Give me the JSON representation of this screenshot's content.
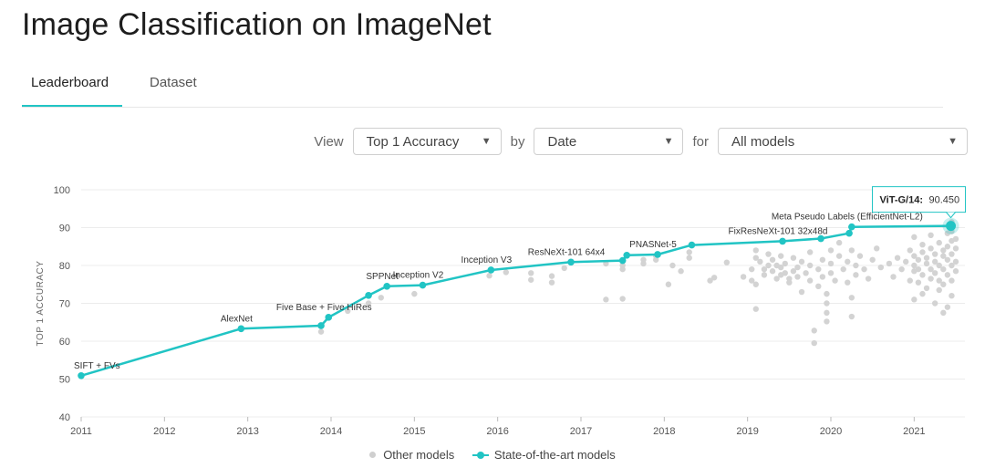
{
  "page": {
    "title": "Image Classification on ImageNet"
  },
  "tabs": [
    {
      "label": "Leaderboard",
      "active": true
    },
    {
      "label": "Dataset",
      "active": false
    }
  ],
  "filters": {
    "view_label": "View",
    "metric": "Top 1 Accuracy",
    "by_label": "by",
    "sort": "Date",
    "for_label": "for",
    "models": "All models"
  },
  "chart_data": {
    "type": "scatter",
    "ylabel": "TOP 1 ACCURACY",
    "xlabel": "",
    "ylim": [
      40,
      100
    ],
    "xlim": [
      2011,
      2021.5
    ],
    "y_ticks": [
      40,
      50,
      60,
      70,
      80,
      90,
      100
    ],
    "x_ticks": [
      "2011",
      "2012",
      "2013",
      "2014",
      "2015",
      "2016",
      "2017",
      "2018",
      "2019",
      "2020",
      "2021"
    ],
    "grid": true,
    "legend": {
      "position": "bottom",
      "entries": [
        "Other models",
        "State-of-the-art models"
      ]
    },
    "colors": {
      "sota": "#21c4c4",
      "other": "#d3d3d3",
      "grid": "#ececec"
    },
    "series": [
      {
        "name": "State-of-the-art models",
        "points": [
          {
            "x": 2011.0,
            "y": 50.9,
            "label": "SIFT + FVs"
          },
          {
            "x": 2012.92,
            "y": 63.3,
            "label": "AlexNet"
          },
          {
            "x": 2013.88,
            "y": 64.1,
            "label": ""
          },
          {
            "x": 2013.97,
            "y": 66.3,
            "label": "Five Base + Five HiRes"
          },
          {
            "x": 2014.45,
            "y": 72.1,
            "label": ""
          },
          {
            "x": 2014.67,
            "y": 74.5,
            "label": "SPPNet"
          },
          {
            "x": 2015.1,
            "y": 74.8,
            "label": "Inception V2"
          },
          {
            "x": 2015.92,
            "y": 78.8,
            "label": "Inception V3"
          },
          {
            "x": 2016.88,
            "y": 80.9,
            "label": "ResNeXt-101 64x4"
          },
          {
            "x": 2017.5,
            "y": 81.3,
            "label": ""
          },
          {
            "x": 2017.55,
            "y": 82.7,
            "label": ""
          },
          {
            "x": 2017.92,
            "y": 82.9,
            "label": "PNASNet-5"
          },
          {
            "x": 2018.33,
            "y": 85.4,
            "label": ""
          },
          {
            "x": 2019.42,
            "y": 86.4,
            "label": "FixResNeXt-101 32x48d"
          },
          {
            "x": 2019.88,
            "y": 87.1,
            "label": ""
          },
          {
            "x": 2020.22,
            "y": 88.5,
            "label": ""
          },
          {
            "x": 2020.25,
            "y": 90.2,
            "label": "Meta Pseudo Labels (EfficientNet-L2)"
          },
          {
            "x": 2021.44,
            "y": 90.45,
            "label": ""
          }
        ]
      },
      {
        "name": "Other models",
        "points": [
          {
            "x": 2013.88,
            "y": 62.5
          },
          {
            "x": 2014.2,
            "y": 68
          },
          {
            "x": 2014.45,
            "y": 70
          },
          {
            "x": 2014.6,
            "y": 71.5
          },
          {
            "x": 2015.0,
            "y": 72.5
          },
          {
            "x": 2015.9,
            "y": 77.3
          },
          {
            "x": 2016.1,
            "y": 78.2
          },
          {
            "x": 2016.4,
            "y": 76.2
          },
          {
            "x": 2016.4,
            "y": 78
          },
          {
            "x": 2016.65,
            "y": 75.5
          },
          {
            "x": 2016.65,
            "y": 77.2
          },
          {
            "x": 2016.8,
            "y": 79.3
          },
          {
            "x": 2017.3,
            "y": 71
          },
          {
            "x": 2017.3,
            "y": 80.5
          },
          {
            "x": 2017.5,
            "y": 71.2
          },
          {
            "x": 2017.5,
            "y": 79
          },
          {
            "x": 2017.5,
            "y": 80
          },
          {
            "x": 2017.75,
            "y": 80.5
          },
          {
            "x": 2017.75,
            "y": 81.5
          },
          {
            "x": 2017.9,
            "y": 81.5
          },
          {
            "x": 2017.9,
            "y": 82.5
          },
          {
            "x": 2018.05,
            "y": 75
          },
          {
            "x": 2018.1,
            "y": 80
          },
          {
            "x": 2018.2,
            "y": 78.5
          },
          {
            "x": 2018.3,
            "y": 82
          },
          {
            "x": 2018.3,
            "y": 83.5
          },
          {
            "x": 2018.55,
            "y": 76
          },
          {
            "x": 2018.6,
            "y": 76.8
          },
          {
            "x": 2018.75,
            "y": 80.8
          },
          {
            "x": 2018.95,
            "y": 77
          },
          {
            "x": 2019.05,
            "y": 76
          },
          {
            "x": 2019.1,
            "y": 75
          },
          {
            "x": 2019.1,
            "y": 68.5
          },
          {
            "x": 2019.05,
            "y": 79
          },
          {
            "x": 2019.1,
            "y": 82
          },
          {
            "x": 2019.1,
            "y": 84
          },
          {
            "x": 2019.15,
            "y": 81
          },
          {
            "x": 2019.2,
            "y": 79
          },
          {
            "x": 2019.2,
            "y": 77.5
          },
          {
            "x": 2019.25,
            "y": 80
          },
          {
            "x": 2019.25,
            "y": 83
          },
          {
            "x": 2019.3,
            "y": 78.5
          },
          {
            "x": 2019.3,
            "y": 81.5
          },
          {
            "x": 2019.35,
            "y": 76.5
          },
          {
            "x": 2019.35,
            "y": 80
          },
          {
            "x": 2019.4,
            "y": 77.5
          },
          {
            "x": 2019.4,
            "y": 79.5
          },
          {
            "x": 2019.4,
            "y": 82.5
          },
          {
            "x": 2019.45,
            "y": 78
          },
          {
            "x": 2019.45,
            "y": 80.5
          },
          {
            "x": 2019.5,
            "y": 76.5
          },
          {
            "x": 2019.5,
            "y": 75.5
          },
          {
            "x": 2019.55,
            "y": 78.5
          },
          {
            "x": 2019.55,
            "y": 82
          },
          {
            "x": 2019.6,
            "y": 77
          },
          {
            "x": 2019.6,
            "y": 79.5
          },
          {
            "x": 2019.65,
            "y": 81
          },
          {
            "x": 2019.65,
            "y": 73
          },
          {
            "x": 2019.7,
            "y": 78
          },
          {
            "x": 2019.75,
            "y": 76
          },
          {
            "x": 2019.75,
            "y": 80
          },
          {
            "x": 2019.75,
            "y": 83.5
          },
          {
            "x": 2019.8,
            "y": 62.8
          },
          {
            "x": 2019.8,
            "y": 59.5
          },
          {
            "x": 2019.85,
            "y": 79
          },
          {
            "x": 2019.85,
            "y": 74.5
          },
          {
            "x": 2019.9,
            "y": 81.5
          },
          {
            "x": 2019.9,
            "y": 77
          },
          {
            "x": 2019.95,
            "y": 70
          },
          {
            "x": 2019.95,
            "y": 67.5
          },
          {
            "x": 2019.95,
            "y": 65.2
          },
          {
            "x": 2019.95,
            "y": 72.5
          },
          {
            "x": 2020.0,
            "y": 78
          },
          {
            "x": 2020.0,
            "y": 84
          },
          {
            "x": 2020.0,
            "y": 80.5
          },
          {
            "x": 2020.05,
            "y": 76
          },
          {
            "x": 2020.1,
            "y": 86
          },
          {
            "x": 2020.1,
            "y": 82.5
          },
          {
            "x": 2020.15,
            "y": 79
          },
          {
            "x": 2020.2,
            "y": 75.5
          },
          {
            "x": 2020.2,
            "y": 81
          },
          {
            "x": 2020.25,
            "y": 66.5
          },
          {
            "x": 2020.25,
            "y": 71.5
          },
          {
            "x": 2020.25,
            "y": 84
          },
          {
            "x": 2020.3,
            "y": 77.5
          },
          {
            "x": 2020.3,
            "y": 80
          },
          {
            "x": 2020.35,
            "y": 82.5
          },
          {
            "x": 2020.4,
            "y": 79
          },
          {
            "x": 2020.45,
            "y": 76.5
          },
          {
            "x": 2020.5,
            "y": 81.5
          },
          {
            "x": 2020.55,
            "y": 84.5
          },
          {
            "x": 2020.6,
            "y": 79.5
          },
          {
            "x": 2020.7,
            "y": 80.5
          },
          {
            "x": 2020.75,
            "y": 77
          },
          {
            "x": 2020.8,
            "y": 82
          },
          {
            "x": 2020.85,
            "y": 79
          },
          {
            "x": 2020.9,
            "y": 81
          },
          {
            "x": 2020.95,
            "y": 76
          },
          {
            "x": 2020.95,
            "y": 84
          },
          {
            "x": 2021.0,
            "y": 71
          },
          {
            "x": 2021.0,
            "y": 78.5
          },
          {
            "x": 2021.0,
            "y": 80
          },
          {
            "x": 2021.0,
            "y": 82.5
          },
          {
            "x": 2021.0,
            "y": 87.5
          },
          {
            "x": 2021.05,
            "y": 75.5
          },
          {
            "x": 2021.05,
            "y": 79
          },
          {
            "x": 2021.05,
            "y": 81.5
          },
          {
            "x": 2021.1,
            "y": 72.5
          },
          {
            "x": 2021.1,
            "y": 77.5
          },
          {
            "x": 2021.1,
            "y": 83.5
          },
          {
            "x": 2021.1,
            "y": 85.5
          },
          {
            "x": 2021.15,
            "y": 74
          },
          {
            "x": 2021.15,
            "y": 80.5
          },
          {
            "x": 2021.15,
            "y": 82
          },
          {
            "x": 2021.2,
            "y": 76.5
          },
          {
            "x": 2021.2,
            "y": 79
          },
          {
            "x": 2021.2,
            "y": 84.5
          },
          {
            "x": 2021.2,
            "y": 88
          },
          {
            "x": 2021.25,
            "y": 70
          },
          {
            "x": 2021.25,
            "y": 78
          },
          {
            "x": 2021.25,
            "y": 81
          },
          {
            "x": 2021.25,
            "y": 83
          },
          {
            "x": 2021.3,
            "y": 73.5
          },
          {
            "x": 2021.3,
            "y": 76
          },
          {
            "x": 2021.3,
            "y": 80
          },
          {
            "x": 2021.3,
            "y": 86
          },
          {
            "x": 2021.35,
            "y": 67.5
          },
          {
            "x": 2021.35,
            "y": 75
          },
          {
            "x": 2021.35,
            "y": 79
          },
          {
            "x": 2021.35,
            "y": 82.5
          },
          {
            "x": 2021.35,
            "y": 84
          },
          {
            "x": 2021.4,
            "y": 69
          },
          {
            "x": 2021.4,
            "y": 77.5
          },
          {
            "x": 2021.4,
            "y": 81.5
          },
          {
            "x": 2021.4,
            "y": 85
          },
          {
            "x": 2021.4,
            "y": 88.5
          },
          {
            "x": 2021.45,
            "y": 72
          },
          {
            "x": 2021.45,
            "y": 76
          },
          {
            "x": 2021.45,
            "y": 80
          },
          {
            "x": 2021.45,
            "y": 83
          },
          {
            "x": 2021.45,
            "y": 86.5
          },
          {
            "x": 2021.45,
            "y": 89
          },
          {
            "x": 2021.45,
            "y": 91.5
          },
          {
            "x": 2021.45,
            "y": 98.5
          },
          {
            "x": 2021.5,
            "y": 78.5
          },
          {
            "x": 2021.5,
            "y": 81
          },
          {
            "x": 2021.5,
            "y": 84.5
          },
          {
            "x": 2021.5,
            "y": 87
          }
        ]
      }
    ],
    "tooltip": {
      "model": "ViT-G/14:",
      "value": "90.450",
      "x": 2021.44,
      "y": 90.45
    }
  }
}
